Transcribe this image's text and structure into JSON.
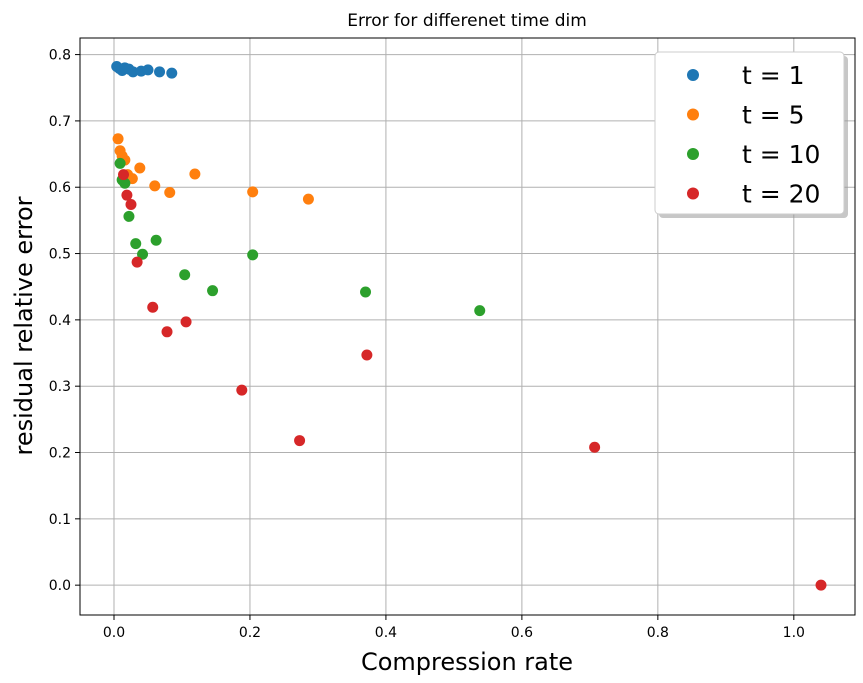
{
  "chart_data": {
    "type": "scatter",
    "title": "Error for differenet time dim",
    "xlabel": "Compression rate",
    "ylabel": "residual relative error",
    "xlim": [
      -0.05,
      1.09
    ],
    "ylim": [
      -0.045,
      0.825
    ],
    "xticks": [
      0.0,
      0.2,
      0.4,
      0.6,
      0.8,
      1.0
    ],
    "xtick_labels": [
      "0.0",
      "0.2",
      "0.4",
      "0.6",
      "0.8",
      "1.0"
    ],
    "yticks": [
      0.0,
      0.1,
      0.2,
      0.3,
      0.4,
      0.5,
      0.6,
      0.7,
      0.8
    ],
    "ytick_labels": [
      "0.0",
      "0.1",
      "0.2",
      "0.3",
      "0.4",
      "0.5",
      "0.6",
      "0.7",
      "0.8"
    ],
    "grid": true,
    "legend_position": "top-right",
    "series": [
      {
        "name": "t = 1",
        "color": "#1f77b4",
        "points": [
          [
            0.004,
            0.782
          ],
          [
            0.008,
            0.779
          ],
          [
            0.012,
            0.776
          ],
          [
            0.016,
            0.78
          ],
          [
            0.022,
            0.778
          ],
          [
            0.028,
            0.774
          ],
          [
            0.04,
            0.775
          ],
          [
            0.05,
            0.777
          ],
          [
            0.067,
            0.774
          ],
          [
            0.085,
            0.772
          ]
        ]
      },
      {
        "name": "t = 5",
        "color": "#ff7f0e",
        "points": [
          [
            0.006,
            0.673
          ],
          [
            0.009,
            0.655
          ],
          [
            0.012,
            0.647
          ],
          [
            0.016,
            0.641
          ],
          [
            0.02,
            0.619
          ],
          [
            0.027,
            0.613
          ],
          [
            0.038,
            0.629
          ],
          [
            0.06,
            0.602
          ],
          [
            0.082,
            0.592
          ],
          [
            0.119,
            0.62
          ],
          [
            0.204,
            0.593
          ],
          [
            0.286,
            0.582
          ]
        ]
      },
      {
        "name": "t = 10",
        "color": "#2ca02c",
        "points": [
          [
            0.009,
            0.636
          ],
          [
            0.012,
            0.611
          ],
          [
            0.016,
            0.606
          ],
          [
            0.022,
            0.556
          ],
          [
            0.032,
            0.515
          ],
          [
            0.042,
            0.499
          ],
          [
            0.062,
            0.52
          ],
          [
            0.104,
            0.468
          ],
          [
            0.145,
            0.444
          ],
          [
            0.204,
            0.498
          ],
          [
            0.37,
            0.442
          ],
          [
            0.538,
            0.414
          ]
        ]
      },
      {
        "name": "t = 20",
        "color": "#d62728",
        "points": [
          [
            0.014,
            0.619
          ],
          [
            0.019,
            0.588
          ],
          [
            0.025,
            0.574
          ],
          [
            0.034,
            0.487
          ],
          [
            0.057,
            0.419
          ],
          [
            0.078,
            0.382
          ],
          [
            0.106,
            0.397
          ],
          [
            0.188,
            0.294
          ],
          [
            0.273,
            0.218
          ],
          [
            0.372,
            0.347
          ],
          [
            0.707,
            0.208
          ],
          [
            1.04,
            0.0
          ]
        ]
      }
    ]
  }
}
